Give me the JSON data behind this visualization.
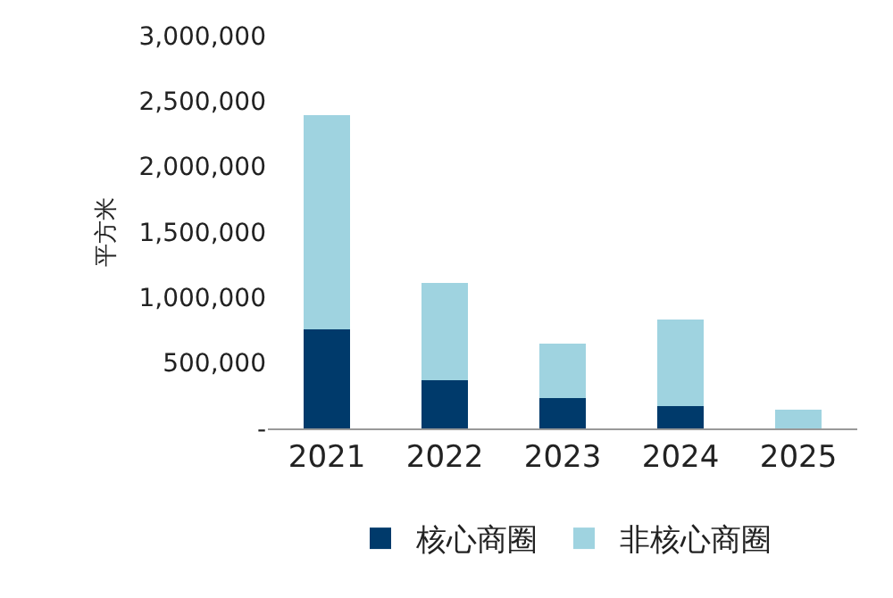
{
  "chart_data": {
    "type": "bar",
    "stacked": true,
    "categories": [
      "2021",
      "2022",
      "2023",
      "2024",
      "2025"
    ],
    "ylabel": "平方米",
    "series": [
      {
        "name": "核心商圈",
        "color": "#003a6b",
        "values": [
          760000,
          370000,
          230000,
          170000,
          0
        ]
      },
      {
        "name": "非核心商圈",
        "color": "#9fd3e0",
        "values": [
          1630000,
          740000,
          420000,
          660000,
          140000
        ]
      }
    ],
    "ylim": [
      0,
      3000000
    ],
    "yticks": [
      {
        "value": 0,
        "label": "-"
      },
      {
        "value": 500000,
        "label": "500,000"
      },
      {
        "value": 1000000,
        "label": "1,000,000"
      },
      {
        "value": 1500000,
        "label": "1,500,000"
      },
      {
        "value": 2000000,
        "label": "2,000,000"
      },
      {
        "value": 2500000,
        "label": "2,500,000"
      },
      {
        "value": 3000000,
        "label": "3,000,000"
      }
    ],
    "grid": false,
    "legend": "bottom"
  }
}
